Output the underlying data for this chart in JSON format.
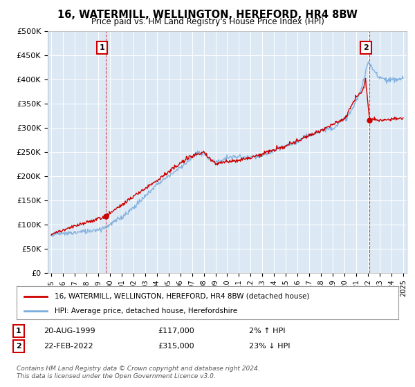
{
  "title": "16, WATERMILL, WELLINGTON, HEREFORD, HR4 8BW",
  "subtitle": "Price paid vs. HM Land Registry's House Price Index (HPI)",
  "legend_label_red": "16, WATERMILL, WELLINGTON, HEREFORD, HR4 8BW (detached house)",
  "legend_label_blue": "HPI: Average price, detached house, Herefordshire",
  "annotation1_label": "1",
  "annotation1_date": "20-AUG-1999",
  "annotation1_price": "£117,000",
  "annotation1_hpi": "2% ↑ HPI",
  "annotation2_label": "2",
  "annotation2_date": "22-FEB-2022",
  "annotation2_price": "£315,000",
  "annotation2_hpi": "23% ↓ HPI",
  "footer": "Contains HM Land Registry data © Crown copyright and database right 2024.\nThis data is licensed under the Open Government Licence v3.0.",
  "ylim": [
    0,
    500000
  ],
  "yticks": [
    0,
    50000,
    100000,
    150000,
    200000,
    250000,
    300000,
    350000,
    400000,
    450000,
    500000
  ],
  "ytick_labels": [
    "£0",
    "£50K",
    "£100K",
    "£150K",
    "£200K",
    "£250K",
    "£300K",
    "£350K",
    "£400K",
    "£450K",
    "£500K"
  ],
  "xtick_years": [
    1995,
    1996,
    1997,
    1998,
    1999,
    2000,
    2001,
    2002,
    2003,
    2004,
    2005,
    2006,
    2007,
    2008,
    2009,
    2010,
    2011,
    2012,
    2013,
    2014,
    2015,
    2016,
    2017,
    2018,
    2019,
    2020,
    2021,
    2022,
    2023,
    2024,
    2025
  ],
  "sale1_x": 1999.63,
  "sale1_y": 117000,
  "sale2_x": 2022.13,
  "sale2_y": 315000,
  "red_color": "#cc0000",
  "blue_color": "#7aacdc",
  "chart_bg": "#dce9f5",
  "background_color": "#ffffff",
  "grid_color": "#ffffff"
}
